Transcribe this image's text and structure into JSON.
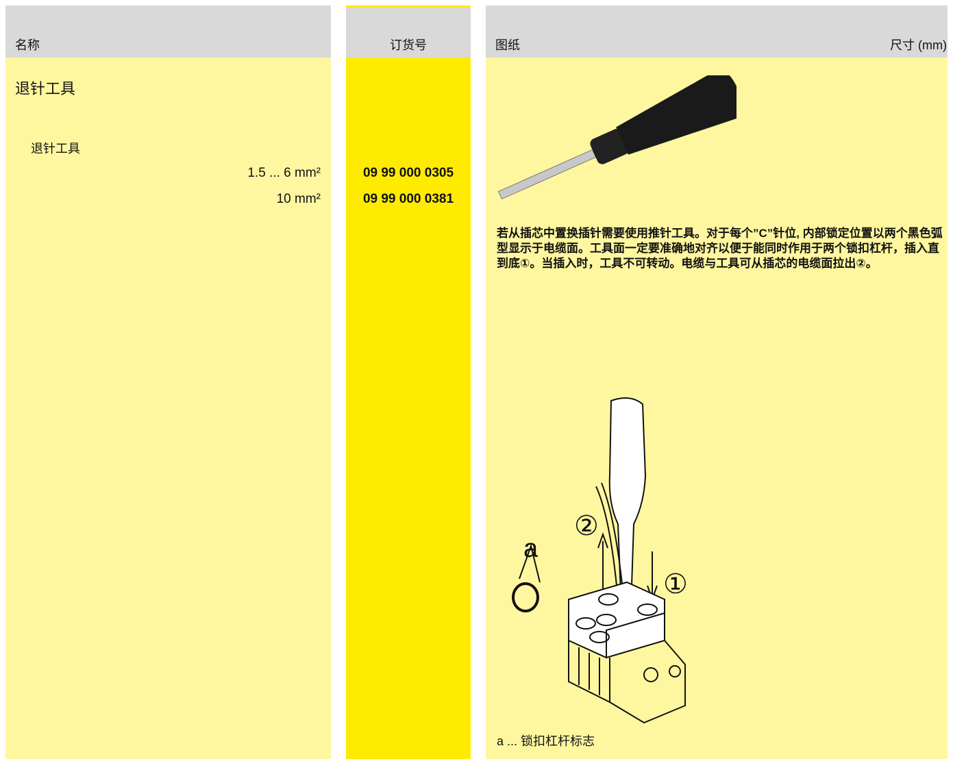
{
  "header": {
    "columns": [
      "名称",
      "订货号",
      "图纸",
      "尺寸 (mm)"
    ]
  },
  "product": {
    "title": "退针工具",
    "subtitle": "退针工具",
    "rows": [
      {
        "size": "1.5 ... 6 mm²",
        "order_no": "09 99 000 0305"
      },
      {
        "size": "10 mm²",
        "order_no": "09 99 000 0381"
      }
    ]
  },
  "description": "若从插芯中置换插针需要使用推针工具。对于每个”C”针位, 内部锁定位置以两个黑色弧型显示于电缆面。工具面一定要准确地对齐以便于能同时作用于两个锁扣杠杆，插入直到底①。当插入时，工具不可转动。电缆与工具可从插芯的电缆面拉出②。",
  "diagram": {
    "labels": [
      "a",
      "②",
      "①"
    ],
    "caption": "a ... 锁扣杠杆标志"
  }
}
